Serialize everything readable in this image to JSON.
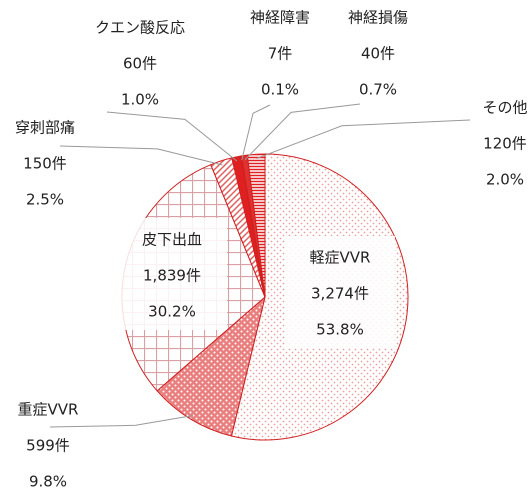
{
  "chart_data": {
    "type": "pie",
    "categories": [
      "軽症VVR",
      "重症VVR",
      "皮下出血",
      "穿刺部痛",
      "クエン酸反応",
      "神経障害",
      "神経損傷",
      "その他"
    ],
    "values": [
      3274,
      599,
      1839,
      150,
      60,
      7,
      40,
      120
    ],
    "value_labels": [
      "3,274件",
      "599件",
      "1,839件",
      "150件",
      "60件",
      "7件",
      "40件",
      "120件"
    ],
    "percentages": [
      53.8,
      9.8,
      30.2,
      2.5,
      1.0,
      0.1,
      0.7,
      2.0
    ],
    "percentage_labels": [
      "53.8%",
      "9.8%",
      "30.2%",
      "2.5%",
      "1.0%",
      "0.1%",
      "0.7%",
      "2.0%"
    ],
    "colors": [
      "#e8a0a0",
      "#e04848",
      "#d9a0a8",
      "#e06060",
      "#e02020",
      "#e02020",
      "#e03030",
      "#e02020"
    ]
  }
}
